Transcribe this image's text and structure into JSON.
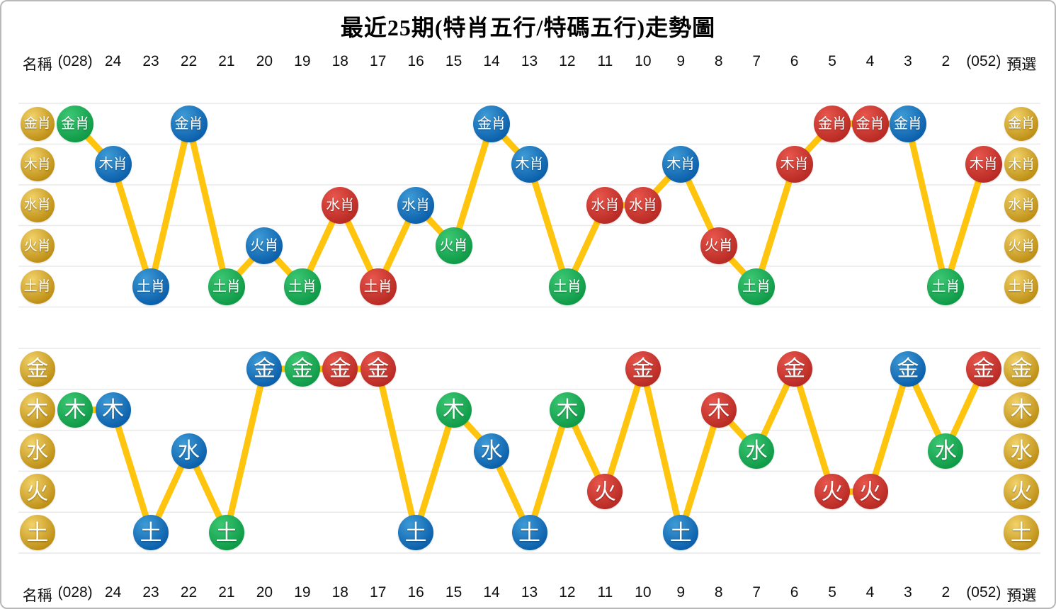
{
  "title": "最近25期(特肖五行/特碼五行)走勢圖",
  "palette": {
    "gold_light": "#F2D269",
    "gold_dark": "#BE8F15",
    "green_light": "#3CC773",
    "green_dark": "#0E9A47",
    "blue_light": "#3E9BD6",
    "blue_dark": "#0B5FAB",
    "red_light": "#E8564C",
    "red_dark": "#B82A24",
    "line": "#FFC40D",
    "gridline": "#E9E9E9",
    "header_text": "#111111"
  },
  "header": {
    "cells": [
      "名稱",
      "(028)",
      "24",
      "23",
      "22",
      "21",
      "20",
      "19",
      "18",
      "17",
      "16",
      "15",
      "14",
      "13",
      "12",
      "11",
      "10",
      "9",
      "8",
      "7",
      "6",
      "5",
      "4",
      "3",
      "2",
      "(052)",
      "預選"
    ]
  },
  "footer": {
    "cells": [
      "名稱",
      "(028)",
      "24",
      "23",
      "22",
      "21",
      "20",
      "19",
      "18",
      "17",
      "16",
      "15",
      "14",
      "13",
      "12",
      "11",
      "10",
      "9",
      "8",
      "7",
      "6",
      "5",
      "4",
      "3",
      "2",
      "(052)",
      "預選"
    ]
  },
  "chart_data": [
    {
      "type": "line",
      "name": "特肖五行走勢",
      "row_labels": [
        "金肖",
        "木肖",
        "水肖",
        "火肖",
        "土肖"
      ],
      "preselect_labels": [
        "金肖",
        "木肖",
        "水肖",
        "火肖",
        "土肖"
      ],
      "categories": [
        "(028)",
        "24",
        "23",
        "22",
        "21",
        "20",
        "19",
        "18",
        "17",
        "16",
        "15",
        "14",
        "13",
        "12",
        "11",
        "10",
        "9",
        "8",
        "7",
        "6",
        "5",
        "4",
        "3",
        "2",
        "(052)"
      ],
      "points": [
        {
          "period": "(028)",
          "label": "金肖",
          "row": 0,
          "color": "green"
        },
        {
          "period": "24",
          "label": "木肖",
          "row": 1,
          "color": "blue"
        },
        {
          "period": "23",
          "label": "土肖",
          "row": 4,
          "color": "blue"
        },
        {
          "period": "22",
          "label": "金肖",
          "row": 0,
          "color": "blue"
        },
        {
          "period": "21",
          "label": "土肖",
          "row": 4,
          "color": "green"
        },
        {
          "period": "20",
          "label": "火肖",
          "row": 3,
          "color": "blue"
        },
        {
          "period": "19",
          "label": "土肖",
          "row": 4,
          "color": "green"
        },
        {
          "period": "18",
          "label": "水肖",
          "row": 2,
          "color": "red"
        },
        {
          "period": "17",
          "label": "土肖",
          "row": 4,
          "color": "red"
        },
        {
          "period": "16",
          "label": "水肖",
          "row": 2,
          "color": "blue"
        },
        {
          "period": "15",
          "label": "火肖",
          "row": 3,
          "color": "green"
        },
        {
          "period": "14",
          "label": "金肖",
          "row": 0,
          "color": "blue"
        },
        {
          "period": "13",
          "label": "木肖",
          "row": 1,
          "color": "blue"
        },
        {
          "period": "12",
          "label": "土肖",
          "row": 4,
          "color": "green"
        },
        {
          "period": "11",
          "label": "水肖",
          "row": 2,
          "color": "red"
        },
        {
          "period": "10",
          "label": "水肖",
          "row": 2,
          "color": "red"
        },
        {
          "period": "9",
          "label": "木肖",
          "row": 1,
          "color": "blue"
        },
        {
          "period": "8",
          "label": "火肖",
          "row": 3,
          "color": "red"
        },
        {
          "period": "7",
          "label": "土肖",
          "row": 4,
          "color": "green"
        },
        {
          "period": "6",
          "label": "木肖",
          "row": 1,
          "color": "red"
        },
        {
          "period": "5",
          "label": "金肖",
          "row": 0,
          "color": "red"
        },
        {
          "period": "4",
          "label": "金肖",
          "row": 0,
          "color": "red"
        },
        {
          "period": "3",
          "label": "金肖",
          "row": 0,
          "color": "blue"
        },
        {
          "period": "2",
          "label": "土肖",
          "row": 4,
          "color": "green"
        },
        {
          "period": "(052)",
          "label": "木肖",
          "row": 1,
          "color": "red"
        }
      ]
    },
    {
      "type": "line",
      "name": "特碼五行走勢",
      "row_labels": [
        "金",
        "木",
        "水",
        "火",
        "土"
      ],
      "preselect_labels": [
        "金",
        "木",
        "水",
        "火",
        "土"
      ],
      "categories": [
        "(028)",
        "24",
        "23",
        "22",
        "21",
        "20",
        "19",
        "18",
        "17",
        "16",
        "15",
        "14",
        "13",
        "12",
        "11",
        "10",
        "9",
        "8",
        "7",
        "6",
        "5",
        "4",
        "3",
        "2",
        "(052)"
      ],
      "points": [
        {
          "period": "(028)",
          "label": "木",
          "row": 1,
          "color": "green"
        },
        {
          "period": "24",
          "label": "木",
          "row": 1,
          "color": "blue"
        },
        {
          "period": "23",
          "label": "土",
          "row": 4,
          "color": "blue"
        },
        {
          "period": "22",
          "label": "水",
          "row": 2,
          "color": "blue"
        },
        {
          "period": "21",
          "label": "土",
          "row": 4,
          "color": "green"
        },
        {
          "period": "20",
          "label": "金",
          "row": 0,
          "color": "blue"
        },
        {
          "period": "19",
          "label": "金",
          "row": 0,
          "color": "green"
        },
        {
          "period": "18",
          "label": "金",
          "row": 0,
          "color": "red"
        },
        {
          "period": "17",
          "label": "金",
          "row": 0,
          "color": "red"
        },
        {
          "period": "16",
          "label": "土",
          "row": 4,
          "color": "blue"
        },
        {
          "period": "15",
          "label": "木",
          "row": 1,
          "color": "green"
        },
        {
          "period": "14",
          "label": "水",
          "row": 2,
          "color": "blue"
        },
        {
          "period": "13",
          "label": "土",
          "row": 4,
          "color": "blue"
        },
        {
          "period": "12",
          "label": "木",
          "row": 1,
          "color": "green"
        },
        {
          "period": "11",
          "label": "火",
          "row": 3,
          "color": "red"
        },
        {
          "period": "10",
          "label": "金",
          "row": 0,
          "color": "red"
        },
        {
          "period": "9",
          "label": "土",
          "row": 4,
          "color": "blue"
        },
        {
          "period": "8",
          "label": "木",
          "row": 1,
          "color": "red"
        },
        {
          "period": "7",
          "label": "水",
          "row": 2,
          "color": "green"
        },
        {
          "period": "6",
          "label": "金",
          "row": 0,
          "color": "red"
        },
        {
          "period": "5",
          "label": "火",
          "row": 3,
          "color": "red"
        },
        {
          "period": "4",
          "label": "火",
          "row": 3,
          "color": "red"
        },
        {
          "period": "3",
          "label": "金",
          "row": 0,
          "color": "blue"
        },
        {
          "period": "2",
          "label": "水",
          "row": 2,
          "color": "green"
        },
        {
          "period": "(052)",
          "label": "金",
          "row": 0,
          "color": "red"
        }
      ]
    }
  ]
}
